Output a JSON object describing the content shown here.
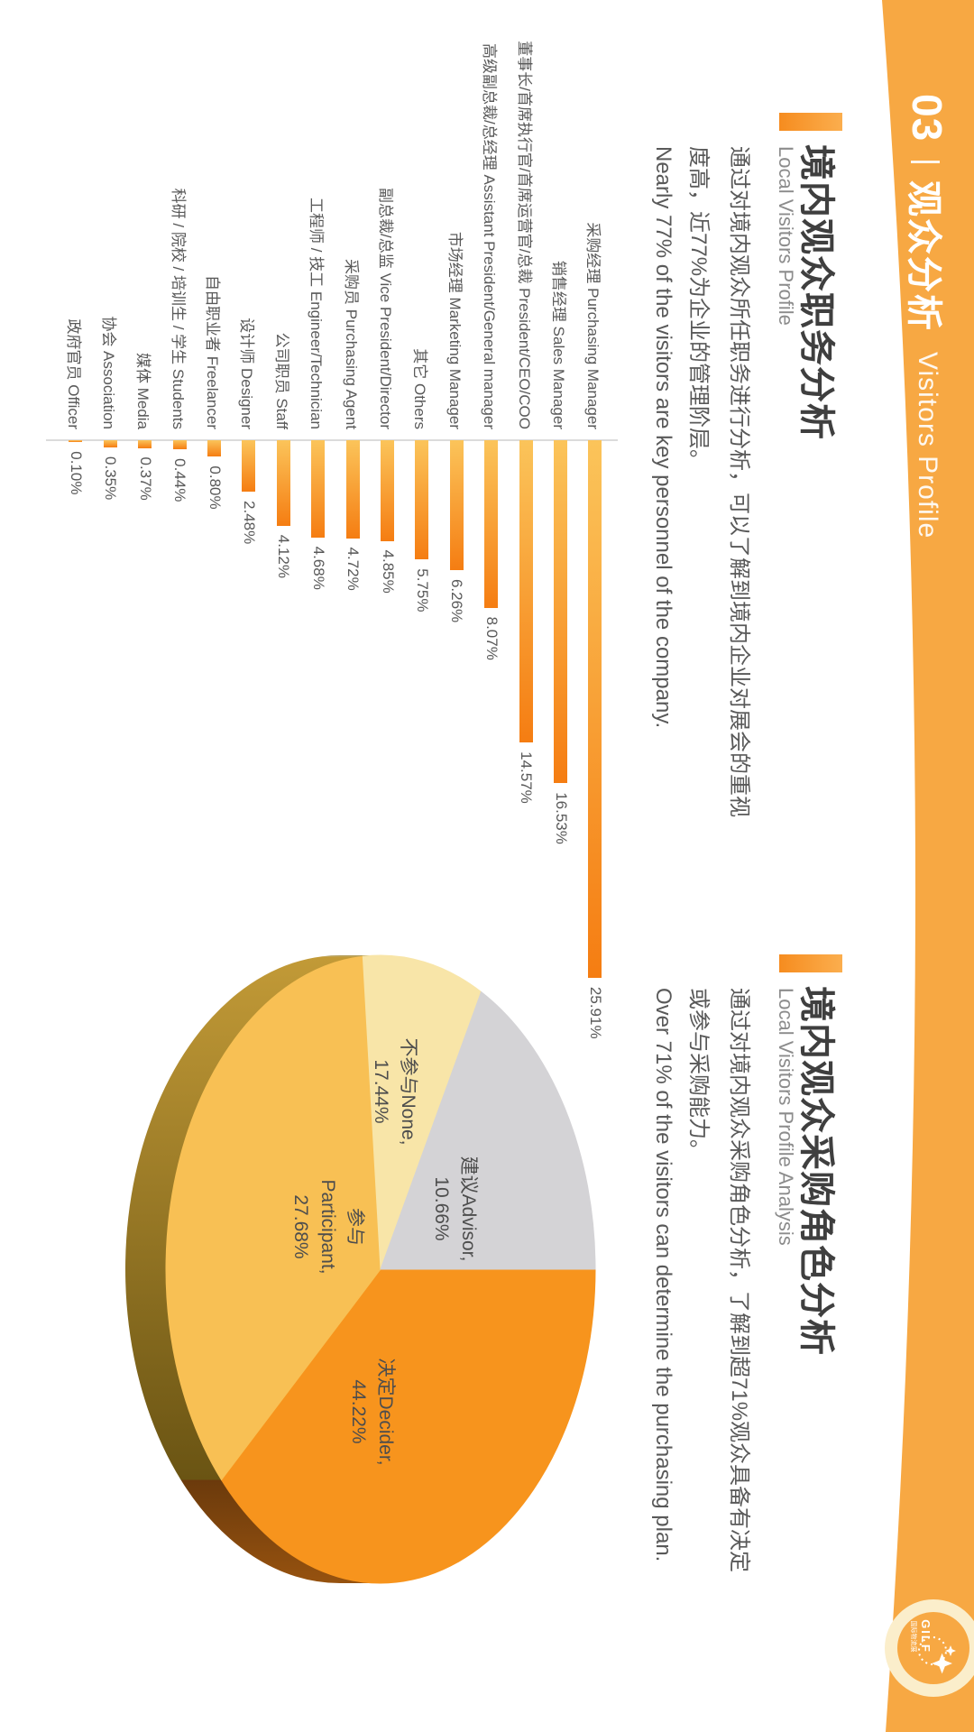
{
  "header": {
    "number": "03",
    "divider": "|",
    "title_cn": "观众分析",
    "title_en": "Visitors Profile",
    "band_color": "#F7A843"
  },
  "logo": {
    "name": "GILF",
    "sub": "国际物流展",
    "ring_color": "#FBEECB"
  },
  "sections": {
    "jobs": {
      "title": "境内观众职务分析",
      "subtitle": "Local Visitors Profile",
      "body_line1": "通过对境内观众所任职务进行分析，可以了解到境内企业对展会的重视",
      "body_line2": "度高，近77%为企业的管理阶层。",
      "body_en": "Nearly 77% of the visitors are key personnel of the company."
    },
    "purchasing": {
      "title": "境内观众采购角色分析",
      "subtitle": "Local Visitors Profile Analysis",
      "body_line1": "通过对境内观众采购角色分析，了解到超71%观众具备有决定",
      "body_line2": "或参与采购能力。",
      "body_en": "Over 71% of the visitors can determine the purchasing plan."
    }
  },
  "chart_data": [
    {
      "type": "bar",
      "orientation": "horizontal",
      "title": "境内观众职务分析 Local Visitors Profile",
      "categories": [
        "采购经理 Purchasing Manager",
        "销售经理 Sales Manager",
        "董事长/首席执行官/首席运营官/总裁 President/CEO/COO",
        "高级副总裁/总经理 Assistant President/General manager",
        "市场经理 Marketing Manager",
        "其它 Others",
        "副总裁/总监 Vice President/Director",
        "采购员 Purchasing Agent",
        "工程师 / 技工 Engineer/Technician",
        "公司职员 Staff",
        "设计师 Designer",
        "自由职业者 Freelancer",
        "科研 / 院校 / 培训生 / 学生 Students",
        "媒体 Media",
        "协会 Association",
        "政府官员 Officer"
      ],
      "values": [
        25.91,
        16.53,
        14.57,
        8.07,
        6.26,
        5.75,
        4.85,
        4.72,
        4.68,
        4.12,
        2.48,
        0.8,
        0.44,
        0.37,
        0.35,
        0.1
      ],
      "value_suffix": "%",
      "xlim": [
        0,
        26.5
      ],
      "grid": false,
      "bar_color_start": "#FBC45A",
      "bar_color_end": "#F57D12",
      "axis_color": "#DBDBDB",
      "text_color": "#595959"
    },
    {
      "type": "pie",
      "variant": "3d",
      "title": "境内观众采购角色分析 Local Visitors Profile Analysis",
      "start_angle_deg": 0,
      "direction": "clockwise",
      "slices": [
        {
          "name": "决定Decider",
          "value": 44.22,
          "color": "#F7941D",
          "side_from": "#6B3A0C",
          "side_to": "#96520F",
          "label_lines": [
            "决定Decider,",
            "44.22%"
          ]
        },
        {
          "name": "参与Participant",
          "value": 27.68,
          "color": "#F8C054",
          "side_from": "#C29A37",
          "side_to": "#6A5413",
          "label_lines": [
            "参与",
            "Participant,",
            "27.68%"
          ]
        },
        {
          "name": "不参与None",
          "value": 17.44,
          "color": "#F8E5A8",
          "side_from": "#C7B169",
          "side_to": "#8F7B3A",
          "label_lines": [
            "不参与None,",
            "17.44%"
          ]
        },
        {
          "name": "建议Advisor",
          "value": 10.66,
          "color": "#D4D3D6",
          "side_from": "#A3A2A5",
          "side_to": "#8A898C",
          "label_lines": [
            "建议Advisor,",
            "10.66%"
          ]
        }
      ],
      "label_color": "#4D4D4D"
    }
  ]
}
